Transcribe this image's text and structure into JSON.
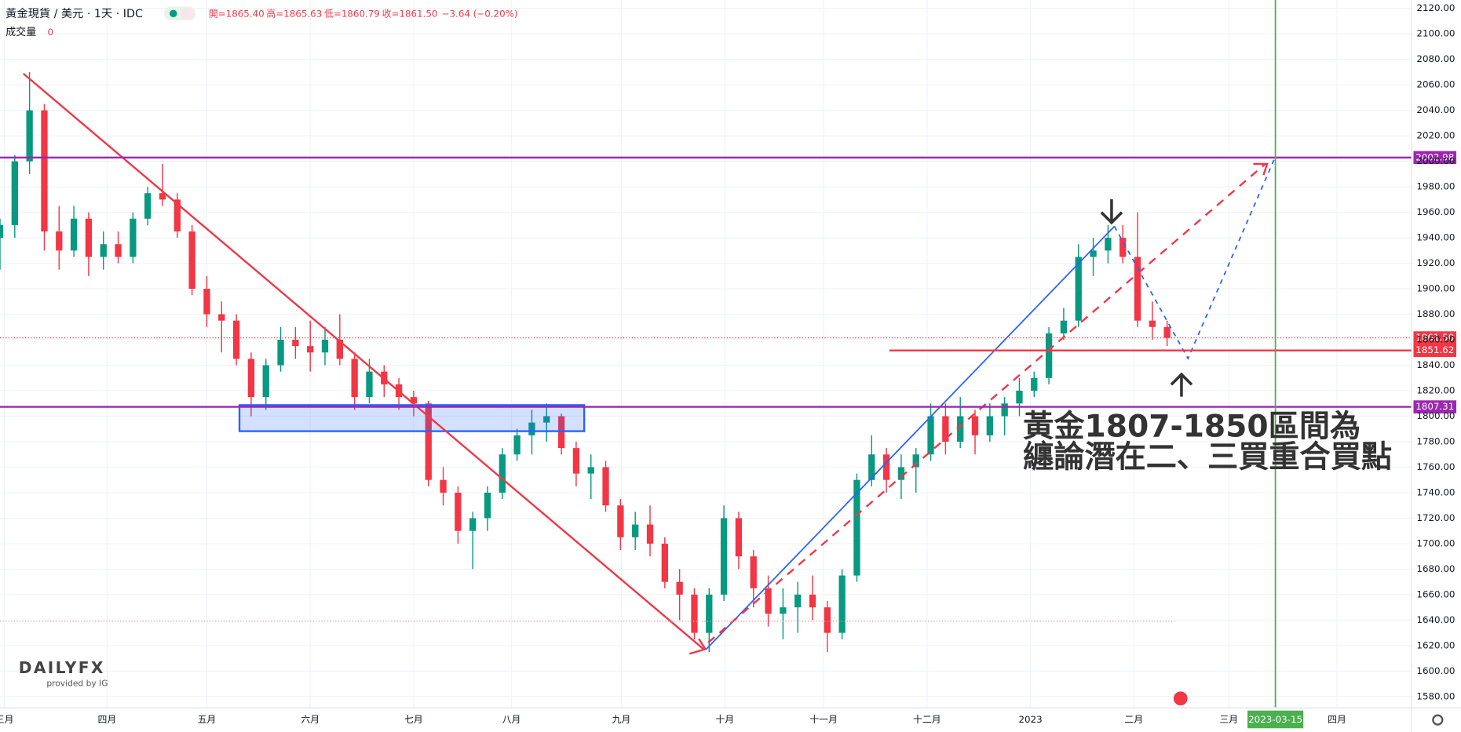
{
  "header": {
    "title": "黃金現貨 / 美元 · 1天 · IDC",
    "ohlc": [
      "開=1865.40",
      "高=1865.63",
      "低=1860.79",
      "收=1861.50",
      "−3.64 (−0.20%)"
    ],
    "volume_label": "成交量",
    "volume_value": "0"
  },
  "annotation": [
    "黃金1807-1850區間為",
    "纏論潛在二、三買重合買點"
  ],
  "logo": {
    "brand": "DAILYFX",
    "sub": "provided by IG"
  },
  "chart_data": {
    "type": "candlestick",
    "up_color": "#089981",
    "down_color": "#f23645",
    "grid": true,
    "x": [
      0,
      1,
      2,
      3,
      4,
      5,
      6,
      7,
      8,
      9,
      10,
      11,
      12,
      13,
      14,
      15,
      16,
      17,
      18,
      19,
      20,
      21,
      22,
      23,
      24,
      25,
      26,
      27,
      28,
      29,
      30,
      31,
      32,
      33,
      34,
      35,
      36,
      37,
      38,
      39,
      40,
      41,
      42,
      43,
      44,
      45,
      46,
      47,
      48,
      49,
      50,
      51,
      52,
      53,
      54,
      55,
      56,
      57,
      58,
      59,
      60,
      61,
      62,
      63,
      64,
      65,
      66,
      67,
      68,
      69,
      70,
      71,
      72,
      73,
      74,
      75,
      76,
      77,
      78,
      79
    ],
    "open": [
      1940,
      1950,
      2000,
      2040,
      1945,
      1930,
      1955,
      1925,
      1935,
      1925,
      1955,
      1975,
      1970,
      1945,
      1900,
      1880,
      1875,
      1845,
      1815,
      1840,
      1860,
      1855,
      1850,
      1860,
      1845,
      1815,
      1835,
      1825,
      1815,
      1810,
      1750,
      1740,
      1710,
      1720,
      1740,
      1770,
      1785,
      1795,
      1800,
      1775,
      1755,
      1760,
      1730,
      1705,
      1715,
      1700,
      1670,
      1660,
      1630,
      1660,
      1720,
      1690,
      1665,
      1645,
      1650,
      1660,
      1650,
      1630,
      1675,
      1750,
      1770,
      1750,
      1760,
      1770,
      1800,
      1780,
      1800,
      1785,
      1800,
      1810,
      1820,
      1830,
      1865,
      1875,
      1925,
      1930,
      1940,
      1925,
      1875,
      1870
    ],
    "high": [
      1955,
      2005,
      2070,
      2045,
      1965,
      1965,
      1960,
      1945,
      1945,
      1960,
      1980,
      1998,
      1975,
      1950,
      1910,
      1890,
      1880,
      1850,
      1845,
      1870,
      1870,
      1875,
      1870,
      1880,
      1850,
      1845,
      1840,
      1830,
      1820,
      1812,
      1760,
      1745,
      1725,
      1745,
      1775,
      1790,
      1805,
      1810,
      1802,
      1780,
      1770,
      1765,
      1735,
      1725,
      1730,
      1705,
      1680,
      1665,
      1665,
      1730,
      1725,
      1695,
      1675,
      1665,
      1670,
      1675,
      1655,
      1680,
      1755,
      1785,
      1775,
      1770,
      1775,
      1810,
      1810,
      1815,
      1805,
      1810,
      1815,
      1830,
      1835,
      1870,
      1885,
      1935,
      1940,
      1950,
      1950,
      1960,
      1890,
      1875
    ],
    "low": [
      1915,
      1940,
      1990,
      1930,
      1915,
      1925,
      1910,
      1915,
      1920,
      1920,
      1950,
      1965,
      1940,
      1895,
      1870,
      1850,
      1840,
      1800,
      1805,
      1835,
      1845,
      1835,
      1840,
      1840,
      1805,
      1810,
      1815,
      1805,
      1800,
      1745,
      1730,
      1700,
      1680,
      1710,
      1735,
      1765,
      1770,
      1780,
      1770,
      1745,
      1735,
      1725,
      1695,
      1695,
      1690,
      1665,
      1640,
      1625,
      1615,
      1655,
      1680,
      1650,
      1635,
      1625,
      1630,
      1640,
      1615,
      1625,
      1670,
      1745,
      1740,
      1735,
      1740,
      1765,
      1770,
      1775,
      1770,
      1780,
      1785,
      1800,
      1815,
      1825,
      1860,
      1870,
      1910,
      1920,
      1920,
      1870,
      1860,
      1855
    ],
    "close": [
      1950,
      2000,
      2040,
      1945,
      1930,
      1955,
      1925,
      1935,
      1925,
      1955,
      1975,
      1970,
      1945,
      1900,
      1880,
      1875,
      1845,
      1815,
      1840,
      1860,
      1855,
      1850,
      1860,
      1845,
      1815,
      1835,
      1825,
      1815,
      1810,
      1750,
      1740,
      1710,
      1720,
      1740,
      1770,
      1785,
      1795,
      1800,
      1775,
      1755,
      1760,
      1730,
      1705,
      1715,
      1700,
      1670,
      1660,
      1630,
      1660,
      1720,
      1690,
      1665,
      1645,
      1650,
      1660,
      1650,
      1630,
      1675,
      1750,
      1770,
      1750,
      1760,
      1770,
      1800,
      1780,
      1800,
      1785,
      1800,
      1810,
      1820,
      1830,
      1865,
      1875,
      1925,
      1930,
      1940,
      1925,
      1875,
      1870,
      1861.5
    ],
    "xlim": [
      0,
      95.55
    ],
    "ylim": [
      1571.2,
      2126.6
    ],
    "xticks": [
      {
        "value": 0.3,
        "label": "三月"
      },
      {
        "value": 7.25,
        "label": "四月"
      },
      {
        "value": 14,
        "label": "五月"
      },
      {
        "value": 21,
        "label": "六月"
      },
      {
        "value": 28,
        "label": "七月"
      },
      {
        "value": 34.62,
        "label": "八月"
      },
      {
        "value": 42.06,
        "label": "九月"
      },
      {
        "value": 49.06,
        "label": "十月"
      },
      {
        "value": 55.75,
        "label": "十一月"
      },
      {
        "value": 62.75,
        "label": "十二月"
      },
      {
        "value": 69.75,
        "label": "2023"
      },
      {
        "value": 76.75,
        "label": "二月"
      },
      {
        "value": 83.18,
        "label": "三月"
      },
      {
        "value": 90.5,
        "label": "四月"
      }
    ],
    "yticks": [
      {
        "value": 1580,
        "label": "1580.00"
      },
      {
        "value": 1600,
        "label": "1600.00"
      },
      {
        "value": 1620,
        "label": "1620.00"
      },
      {
        "value": 1640,
        "label": "1640.00"
      },
      {
        "value": 1660,
        "label": "1660.00"
      },
      {
        "value": 1680,
        "label": "1680.00"
      },
      {
        "value": 1700,
        "label": "1700.00"
      },
      {
        "value": 1720,
        "label": "1720.00"
      },
      {
        "value": 1740,
        "label": "1740.00"
      },
      {
        "value": 1760,
        "label": "1760.00"
      },
      {
        "value": 1780,
        "label": "1780.00"
      },
      {
        "value": 1800,
        "label": "1800.00"
      },
      {
        "value": 1820,
        "label": "1820.00"
      },
      {
        "value": 1840,
        "label": "1840.00"
      },
      {
        "value": 1860,
        "label": "1860.00"
      },
      {
        "value": 1880,
        "label": "1880.00"
      },
      {
        "value": 1900,
        "label": "1900.00"
      },
      {
        "value": 1920,
        "label": "1920.00"
      },
      {
        "value": 1940,
        "label": "1940.00"
      },
      {
        "value": 1960,
        "label": "1960.00"
      },
      {
        "value": 1980,
        "label": "1980.00"
      },
      {
        "value": 2000,
        "label": "2000.00"
      },
      {
        "value": 2020,
        "label": "2020.00"
      },
      {
        "value": 2040,
        "label": "2040.00"
      },
      {
        "value": 2060,
        "label": "2060.00"
      },
      {
        "value": 2080,
        "label": "2080.00"
      },
      {
        "value": 2100,
        "label": "2100.00"
      },
      {
        "value": 2120,
        "label": "2120.00"
      }
    ],
    "levels": [
      {
        "value": 2002.98,
        "color": "#9c27b0"
      },
      {
        "value": 1807.31,
        "color": "#9c27b0"
      },
      {
        "value": 1851.62,
        "color": "#f23645",
        "x_start": 60.2
      },
      {
        "value": {
          "value": 1861.5,
          "label": "1861.50"
        },
        "color": "#f23645",
        "style": "dotted"
      },
      {
        "value": 1639,
        "color": "#e8a0a0",
        "style": "dotted",
        "x_end": 79.5,
        "unlabeled": true
      }
    ],
    "cursor": {
      "x": 86.33,
      "label": "2023-03-15",
      "color": "#4caf50"
    }
  }
}
